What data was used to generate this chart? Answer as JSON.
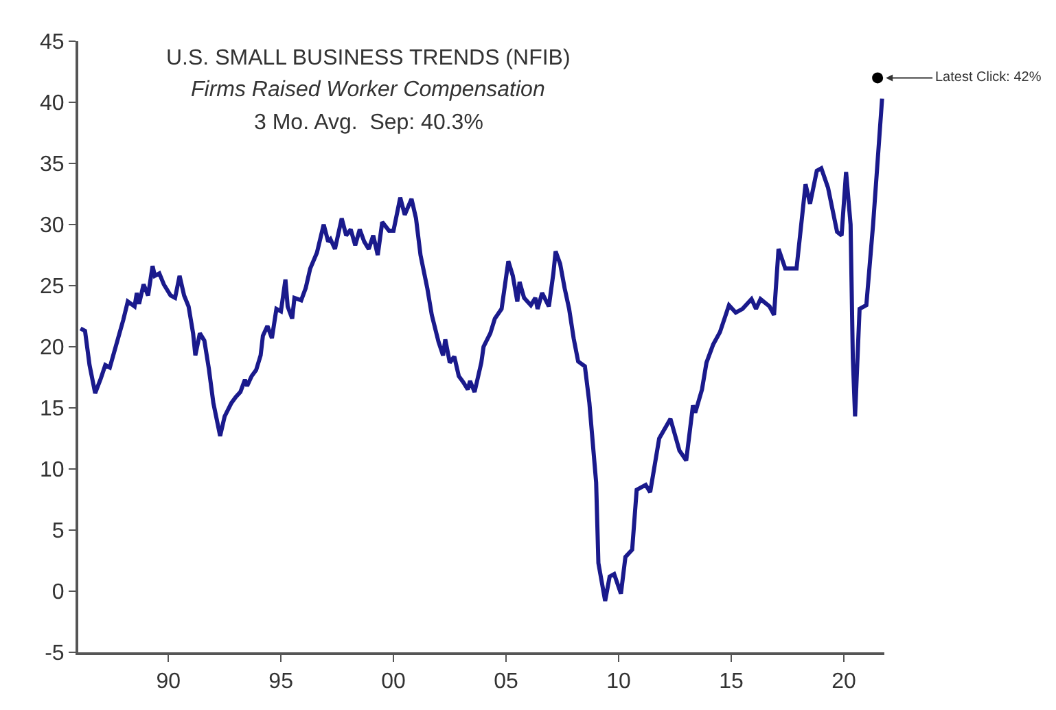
{
  "chart_data": {
    "type": "line",
    "title": "U.S. SMALL BUSINESS TRENDS (NFIB)",
    "subtitle": "Firms Raised Worker Compensation",
    "annotations": [
      "3 Mo. Avg.  Sep: 40.3%",
      {
        "text": "Latest Click: 42%",
        "x": 2021.5,
        "y": 42
      }
    ],
    "series": [
      {
        "color": "#1a1a8c",
        "marker": "none",
        "line_style": "solid",
        "x": [
          1986.1,
          1986.3,
          1986.5,
          1986.75,
          1987.0,
          1987.2,
          1987.4,
          1987.6,
          1988.0,
          1988.2,
          1988.5,
          1988.6,
          1988.7,
          1988.9,
          1989.1,
          1989.3,
          1989.4,
          1989.6,
          1989.8,
          1990.1,
          1990.3,
          1990.5,
          1990.7,
          1990.9,
          1991.1,
          1991.2,
          1991.4,
          1991.6,
          1991.8,
          1992.0,
          1992.3,
          1992.5,
          1992.8,
          1993.0,
          1993.2,
          1993.4,
          1993.5,
          1993.7,
          1993.9,
          1994.1,
          1994.2,
          1994.4,
          1994.6,
          1994.8,
          1995.0,
          1995.2,
          1995.3,
          1995.5,
          1995.6,
          1995.9,
          1996.1,
          1996.3,
          1996.6,
          1996.9,
          1997.1,
          1997.2,
          1997.4,
          1997.7,
          1997.9,
          1998.1,
          1998.3,
          1998.5,
          1998.7,
          1998.9,
          1999.1,
          1999.3,
          1999.5,
          1999.8,
          2000.0,
          2000.3,
          2000.5,
          2000.8,
          2001.0,
          2001.2,
          2001.5,
          2001.7,
          2002.0,
          2002.2,
          2002.3,
          2002.5,
          2002.7,
          2002.9,
          2003.1,
          2003.3,
          2003.4,
          2003.6,
          2003.9,
          2004.0,
          2004.3,
          2004.5,
          2004.8,
          2005.1,
          2005.3,
          2005.5,
          2005.6,
          2005.8,
          2006.1,
          2006.3,
          2006.4,
          2006.6,
          2006.9,
          2007.1,
          2007.2,
          2007.4,
          2007.6,
          2007.8,
          2008.0,
          2008.2,
          2008.5,
          2008.7,
          2009.0,
          2009.1,
          2009.4,
          2009.6,
          2009.8,
          2010.1,
          2010.3,
          2010.6,
          2010.8,
          2011.2,
          2011.4,
          2011.8,
          2012.3,
          2012.7,
          2013.0,
          2013.3,
          2013.4,
          2013.7,
          2013.9,
          2014.2,
          2014.5,
          2014.9,
          2015.2,
          2015.5,
          2015.9,
          2016.1,
          2016.3,
          2016.7,
          2016.9,
          2017.1,
          2017.4,
          2017.9,
          2018.3,
          2018.5,
          2018.8,
          2019.0,
          2019.3,
          2019.7,
          2019.9,
          2020.1,
          2020.3,
          2020.4,
          2020.5,
          2020.7,
          2021.0,
          2021.3,
          2021.7
        ],
        "values": [
          21.5,
          21.3,
          18.5,
          16.2,
          17.4,
          18.5,
          18.3,
          19.6,
          22.2,
          23.7,
          23.3,
          24.4,
          23.5,
          25.1,
          24.2,
          26.6,
          25.8,
          26.0,
          25.1,
          24.2,
          24.0,
          25.8,
          24.2,
          23.3,
          21.1,
          19.3,
          21.1,
          20.5,
          18.2,
          15.4,
          12.7,
          14.3,
          15.4,
          15.9,
          16.3,
          17.3,
          16.8,
          17.6,
          18.1,
          19.3,
          20.9,
          21.7,
          20.7,
          23.1,
          22.9,
          25.5,
          23.3,
          22.3,
          24.0,
          23.8,
          24.8,
          26.4,
          27.7,
          30.0,
          28.6,
          28.8,
          28.0,
          30.5,
          29.1,
          29.6,
          28.3,
          29.6,
          28.6,
          28.0,
          29.1,
          27.5,
          30.2,
          29.5,
          29.5,
          32.2,
          30.8,
          32.1,
          30.5,
          27.5,
          24.8,
          22.6,
          20.4,
          19.3,
          20.6,
          18.7,
          19.2,
          17.6,
          17.1,
          16.5,
          17.2,
          16.3,
          18.7,
          20.0,
          21.1,
          22.3,
          23.1,
          27.0,
          25.8,
          23.7,
          25.3,
          24.0,
          23.4,
          24.0,
          23.1,
          24.4,
          23.3,
          26.0,
          27.8,
          26.8,
          24.8,
          23.1,
          20.7,
          18.8,
          18.4,
          15.4,
          8.9,
          2.3,
          -0.8,
          1.2,
          1.4,
          -0.2,
          2.8,
          3.4,
          8.3,
          8.7,
          8.1,
          12.5,
          14.1,
          11.5,
          10.7,
          15.2,
          14.6,
          16.5,
          18.7,
          20.2,
          21.2,
          23.4,
          22.8,
          23.1,
          23.9,
          23.1,
          23.9,
          23.3,
          22.6,
          28.0,
          26.4,
          26.4,
          33.3,
          31.7,
          34.4,
          34.6,
          33.0,
          29.4,
          29.1,
          34.3,
          30.0,
          19.1,
          14.3,
          23.1,
          23.4,
          30.0,
          40.3
        ]
      },
      {
        "type": "scatter",
        "color": "#000000",
        "marker": "circle",
        "x": [
          2021.5
        ],
        "values": [
          42
        ]
      }
    ],
    "xlim": [
      1986,
      2021.8
    ],
    "xticks": [
      {
        "value": 1990,
        "label": "90"
      },
      {
        "value": 1995,
        "label": "95"
      },
      {
        "value": 2000,
        "label": "00"
      },
      {
        "value": 2005,
        "label": "05"
      },
      {
        "value": 2010,
        "label": "10"
      },
      {
        "value": 2015,
        "label": "15"
      },
      {
        "value": 2020,
        "label": "20"
      }
    ],
    "ylim": [
      -5,
      45
    ],
    "yticks": [
      -5,
      0,
      5,
      10,
      15,
      20,
      25,
      30,
      35,
      40,
      45
    ]
  }
}
